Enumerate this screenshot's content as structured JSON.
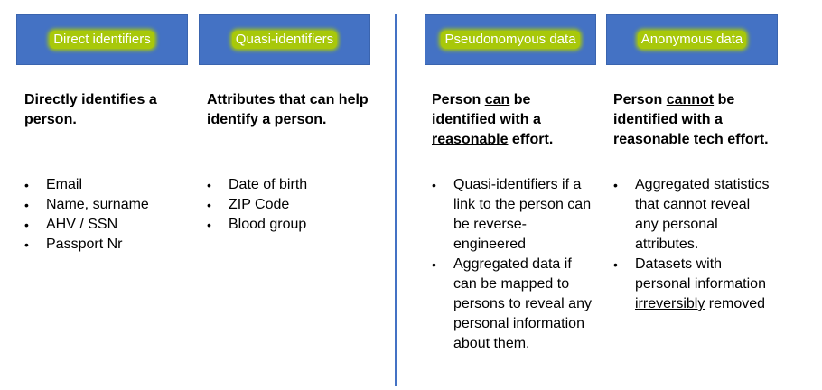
{
  "columns": [
    {
      "header": "Direct identifiers",
      "description": "Directly identifies a person.",
      "bullets": [
        "Email",
        "Name, surname",
        "AHV / SSN",
        "Passport Nr"
      ]
    },
    {
      "header": "Quasi-identifiers",
      "description": "Attributes that can help identify a person.",
      "bullets": [
        "Date of birth",
        "ZIP Code",
        "Blood group"
      ]
    },
    {
      "header": "Pseudonomyous data",
      "description_parts": [
        "Person ",
        "can",
        " be identified with a ",
        "reasonable",
        " effort."
      ],
      "bullets": [
        "Quasi-identifiers if a link to the person can be reverse-engineered",
        "Aggregated data if can be mapped to persons to reveal any personal information about them."
      ]
    },
    {
      "header": "Anonymous data",
      "description_parts": [
        "Person ",
        "cannot",
        " be identified with a reasonable tech effort."
      ],
      "bullets_parts": [
        [
          "Aggregated statistics that cannot reveal any personal attributes."
        ],
        [
          "Datasets with personal information ",
          "irreversibly",
          " removed"
        ]
      ]
    }
  ],
  "colors": {
    "header_fill": "#4472C4",
    "header_label_highlight": "#A8C80A",
    "divider": "#4472C4"
  }
}
